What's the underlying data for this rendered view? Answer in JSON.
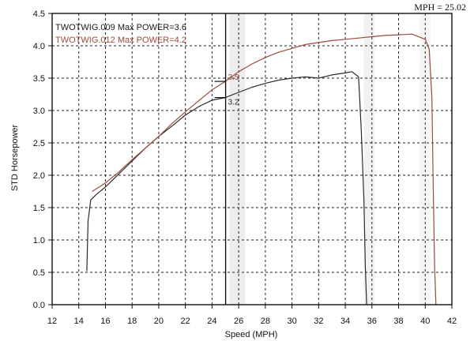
{
  "readout": {
    "text": "MPH = 25.02"
  },
  "chart_data": {
    "type": "line",
    "xlabel": "Speed (MPH)",
    "ylabel": "STD Horsepower",
    "xlim": [
      12,
      42
    ],
    "ylim": [
      0,
      4.5
    ],
    "x_ticks": [
      "12",
      "14",
      "16",
      "18",
      "20",
      "22",
      "24",
      "26",
      "28",
      "30",
      "32",
      "34",
      "36",
      "38",
      "40",
      "42"
    ],
    "y_ticks": [
      "0.0",
      "0.5",
      "1.0",
      "1.5",
      "2.0",
      "2.5",
      "3.0",
      "3.5",
      "4.0",
      "4.5"
    ],
    "grid": true,
    "legend_position": "top-left",
    "cursor": {
      "x": 25.02
    },
    "series": [
      {
        "name": "TWOTWIG.009",
        "legend_text": "TWOTWIG.009  Max POWER=3.6",
        "color": "#2b2b2b",
        "cursor_label": "3.2",
        "cursor_value": 3.2,
        "x": [
          14.6,
          14.7,
          14.9,
          15.3,
          16,
          17,
          18,
          19,
          20,
          21,
          22,
          23,
          24,
          25,
          26,
          27,
          28,
          29,
          30,
          31,
          32,
          33,
          34,
          34.5,
          35,
          35.2,
          35.4,
          35.5,
          35.6
        ],
        "y": [
          0.52,
          1.3,
          1.62,
          1.7,
          1.82,
          2.02,
          2.22,
          2.42,
          2.6,
          2.76,
          2.93,
          3.06,
          3.16,
          3.2,
          3.28,
          3.36,
          3.42,
          3.47,
          3.5,
          3.52,
          3.5,
          3.55,
          3.58,
          3.6,
          3.52,
          2.7,
          1.6,
          0.6,
          0.0
        ]
      },
      {
        "name": "TWOTWIG.012",
        "legend_text": "TWOTWIG.012  Max POWER=4.2",
        "color": "#9c4a3c",
        "cursor_label": "3.5",
        "cursor_value": 3.45,
        "x": [
          15,
          16,
          17,
          18,
          19,
          20,
          21,
          22,
          23,
          24,
          25,
          26,
          27,
          28,
          29,
          30,
          31,
          32,
          33,
          34,
          35,
          36,
          37,
          38,
          39,
          40,
          40.3,
          40.5,
          40.6,
          40.7,
          40.8
        ],
        "y": [
          1.75,
          1.88,
          2.05,
          2.24,
          2.42,
          2.6,
          2.8,
          2.98,
          3.15,
          3.32,
          3.45,
          3.6,
          3.72,
          3.82,
          3.9,
          3.96,
          4.02,
          4.05,
          4.08,
          4.1,
          4.12,
          4.14,
          4.16,
          4.17,
          4.18,
          4.1,
          3.95,
          3.2,
          1.8,
          0.6,
          0.0
        ]
      }
    ]
  }
}
